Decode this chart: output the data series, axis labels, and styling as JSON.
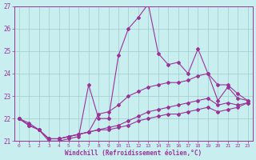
{
  "xlabel": "Windchill (Refroidissement éolien,°C)",
  "xlim": [
    -0.5,
    23.5
  ],
  "ylim": [
    21,
    27
  ],
  "yticks": [
    21,
    22,
    23,
    24,
    25,
    26,
    27
  ],
  "xticks": [
    0,
    1,
    2,
    3,
    4,
    5,
    6,
    7,
    8,
    9,
    10,
    11,
    12,
    13,
    14,
    15,
    16,
    17,
    18,
    19,
    20,
    21,
    22,
    23
  ],
  "background_color": "#c8eef0",
  "grid_color": "#a0ccc8",
  "line_color": "#993399",
  "lines": [
    {
      "x": [
        0,
        1,
        2,
        3,
        4,
        5,
        6,
        7,
        8,
        9,
        10,
        11,
        12,
        13,
        14,
        15,
        16,
        17,
        18,
        19,
        20,
        21,
        22,
        23
      ],
      "y": [
        22.0,
        21.7,
        21.5,
        21.0,
        21.0,
        21.1,
        21.2,
        23.5,
        22.0,
        22.0,
        24.8,
        26.0,
        26.5,
        27.1,
        24.9,
        24.4,
        24.5,
        24.0,
        25.1,
        24.0,
        22.8,
        23.4,
        22.9,
        22.8
      ]
    },
    {
      "x": [
        0,
        1,
        2,
        3,
        4,
        5,
        6,
        7,
        8,
        9,
        10,
        11,
        12,
        13,
        14,
        15,
        16,
        17,
        18,
        19,
        20,
        21,
        22,
        23
      ],
      "y": [
        22.0,
        21.7,
        21.5,
        21.1,
        21.1,
        21.2,
        21.3,
        21.4,
        22.2,
        22.3,
        22.6,
        23.0,
        23.2,
        23.4,
        23.5,
        23.6,
        23.6,
        23.7,
        23.9,
        24.0,
        23.5,
        23.5,
        23.1,
        22.8
      ]
    },
    {
      "x": [
        0,
        1,
        2,
        3,
        4,
        5,
        6,
        7,
        8,
        9,
        10,
        11,
        12,
        13,
        14,
        15,
        16,
        17,
        18,
        19,
        20,
        21,
        22,
        23
      ],
      "y": [
        22.0,
        21.8,
        21.5,
        21.1,
        21.1,
        21.2,
        21.3,
        21.4,
        21.5,
        21.6,
        21.7,
        21.9,
        22.1,
        22.3,
        22.4,
        22.5,
        22.6,
        22.7,
        22.8,
        22.9,
        22.6,
        22.7,
        22.6,
        22.7
      ]
    },
    {
      "x": [
        0,
        1,
        2,
        3,
        4,
        5,
        6,
        7,
        8,
        9,
        10,
        11,
        12,
        13,
        14,
        15,
        16,
        17,
        18,
        19,
        20,
        21,
        22,
        23
      ],
      "y": [
        22.0,
        21.7,
        21.5,
        21.1,
        21.1,
        21.2,
        21.3,
        21.4,
        21.5,
        21.5,
        21.6,
        21.7,
        21.9,
        22.0,
        22.1,
        22.2,
        22.2,
        22.3,
        22.4,
        22.5,
        22.3,
        22.4,
        22.5,
        22.7
      ]
    }
  ]
}
